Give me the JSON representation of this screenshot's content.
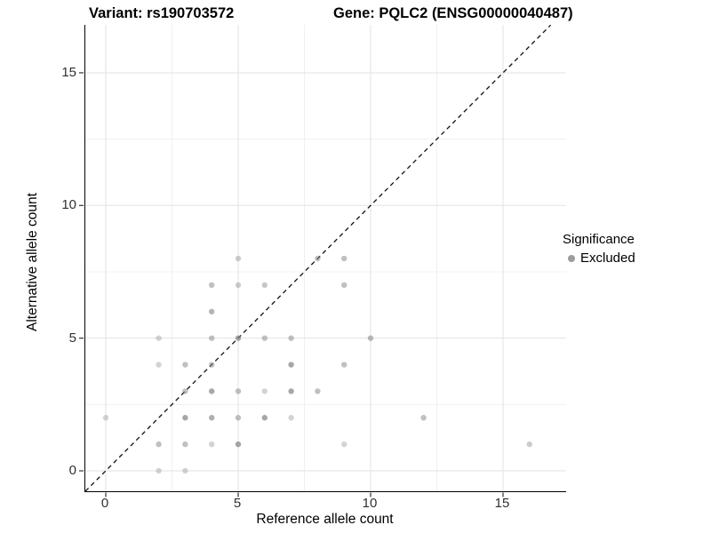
{
  "chart_data": {
    "type": "scatter",
    "title_left": "Variant: rs190703572",
    "title_right": "Gene: PQLC2 (ENSG00000040487)",
    "xlabel": "Reference allele count",
    "ylabel": "Alternative allele count",
    "x_ticks": [
      0,
      5,
      10,
      15
    ],
    "y_ticks": [
      0,
      5,
      10,
      15
    ],
    "x_minor": [
      2.5,
      7.5,
      12.5
    ],
    "y_minor": [
      2.5,
      7.5,
      12.5
    ],
    "xlim": [
      -0.77,
      17.4
    ],
    "ylim": [
      -0.77,
      16.8
    ],
    "grid": true,
    "identity_line": {
      "style": "dashed",
      "color": "#111111"
    },
    "point_color": "#828282",
    "major_grid_color": "#e2e2e2",
    "minor_grid_color": "#f0f0f0",
    "legend": {
      "title": "Significance",
      "position": "right",
      "items": [
        {
          "label": "Excluded",
          "color": "#9c9c9c"
        }
      ]
    },
    "points": [
      {
        "x": 2,
        "y": 0,
        "o": 0.35
      },
      {
        "x": 3,
        "y": 0,
        "o": 0.35
      },
      {
        "x": 2,
        "y": 1,
        "o": 0.5
      },
      {
        "x": 3,
        "y": 1,
        "o": 0.5
      },
      {
        "x": 4,
        "y": 1,
        "o": 0.35
      },
      {
        "x": 5,
        "y": 1,
        "o": 0.7
      },
      {
        "x": 9,
        "y": 1,
        "o": 0.35
      },
      {
        "x": 16,
        "y": 1,
        "o": 0.4
      },
      {
        "x": 0,
        "y": 2,
        "o": 0.35
      },
      {
        "x": 3,
        "y": 2,
        "o": 0.7
      },
      {
        "x": 4,
        "y": 2,
        "o": 0.65
      },
      {
        "x": 5,
        "y": 2,
        "o": 0.5
      },
      {
        "x": 6,
        "y": 2,
        "o": 0.7
      },
      {
        "x": 7,
        "y": 2,
        "o": 0.35
      },
      {
        "x": 12,
        "y": 2,
        "o": 0.5
      },
      {
        "x": 3,
        "y": 3,
        "o": 0.5
      },
      {
        "x": 4,
        "y": 3,
        "o": 0.7
      },
      {
        "x": 5,
        "y": 3,
        "o": 0.5
      },
      {
        "x": 6,
        "y": 3,
        "o": 0.35
      },
      {
        "x": 7,
        "y": 3,
        "o": 0.7
      },
      {
        "x": 8,
        "y": 3,
        "o": 0.5
      },
      {
        "x": 2,
        "y": 4,
        "o": 0.35
      },
      {
        "x": 3,
        "y": 4,
        "o": 0.5
      },
      {
        "x": 4,
        "y": 4,
        "o": 0.5
      },
      {
        "x": 7,
        "y": 4,
        "o": 0.7
      },
      {
        "x": 9,
        "y": 4,
        "o": 0.5
      },
      {
        "x": 2,
        "y": 5,
        "o": 0.35
      },
      {
        "x": 4,
        "y": 5,
        "o": 0.5
      },
      {
        "x": 5,
        "y": 5,
        "o": 0.7
      },
      {
        "x": 6,
        "y": 5,
        "o": 0.5
      },
      {
        "x": 7,
        "y": 5,
        "o": 0.5
      },
      {
        "x": 10,
        "y": 5,
        "o": 0.55
      },
      {
        "x": 4,
        "y": 6,
        "o": 0.6
      },
      {
        "x": 4,
        "y": 7,
        "o": 0.5
      },
      {
        "x": 5,
        "y": 7,
        "o": 0.4
      },
      {
        "x": 6,
        "y": 7,
        "o": 0.45
      },
      {
        "x": 9,
        "y": 7,
        "o": 0.5
      },
      {
        "x": 5,
        "y": 8,
        "o": 0.4
      },
      {
        "x": 8,
        "y": 8,
        "o": 0.5
      },
      {
        "x": 9,
        "y": 8,
        "o": 0.5
      }
    ]
  }
}
